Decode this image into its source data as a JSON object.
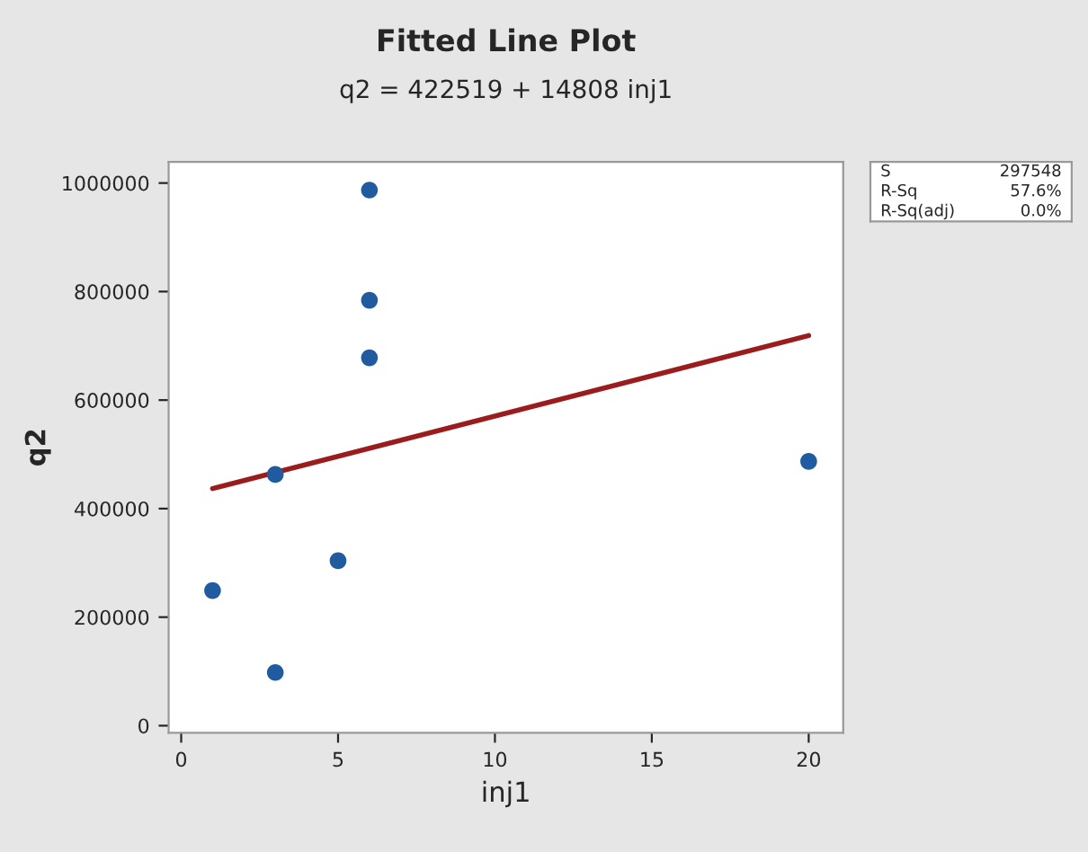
{
  "chart_data": {
    "type": "scatter",
    "title": "Fitted Line Plot",
    "subtitle": "q2 = 422519 + 14808 inj1",
    "xlabel": "inj1",
    "ylabel": "q2",
    "x": [
      1,
      3,
      3,
      5,
      6,
      6,
      6,
      20
    ],
    "series": [
      {
        "color": "#1f5b9e",
        "marker": "circle",
        "values": [
          249000,
          463000,
          98000,
          304000,
          987000,
          784000,
          678000,
          487000
        ]
      },
      {
        "type": "line",
        "marker": "none",
        "color": "#9b1c1c",
        "x": [
          1,
          20
        ],
        "values": [
          437000,
          719000
        ]
      }
    ],
    "xlim": [
      -0.4,
      21.1
    ],
    "xticks": [
      0,
      5,
      10,
      15,
      20
    ],
    "ylim": [
      -13000,
      1039000
    ],
    "yticks": [
      0,
      200000,
      400000,
      600000,
      800000,
      1000000
    ],
    "annotations": [
      "S",
      "297548",
      "R-Sq",
      "57.6%",
      "R-Sq(adj)",
      "0.0%"
    ],
    "line_style": "solid",
    "grid": false,
    "legend": false
  }
}
